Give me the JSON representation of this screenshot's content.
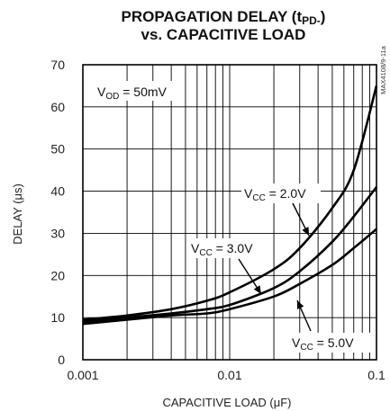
{
  "chart_data": {
    "type": "line",
    "title_line1": "PROPAGATION DELAY (t",
    "title_sub": "PD-",
    "title_line1_end": ")",
    "title_line2": "vs. CAPACITIVE LOAD",
    "xlabel": "CAPACITIVE LOAD (μF)",
    "ylabel": "DELAY (μs)",
    "x_scale": "log",
    "xlim": [
      0.001,
      0.1
    ],
    "ylim": [
      0,
      70
    ],
    "grid": true,
    "x_ticks": [
      "0.001",
      "0.01",
      "0.1"
    ],
    "y_ticks": [
      "0",
      "10",
      "20",
      "30",
      "40",
      "50",
      "60",
      "70"
    ],
    "condition_label": {
      "main": "V",
      "sub": "OD",
      "rest": " = 50mV"
    },
    "side_code": "MAX4108/9-11a",
    "series": [
      {
        "label_main": "V",
        "label_sub": "CC",
        "label_rest": " = 2.0V",
        "x": [
          0.001,
          0.002,
          0.004,
          0.007,
          0.01,
          0.02,
          0.03,
          0.05,
          0.07,
          0.1
        ],
        "y": [
          9.5,
          10.5,
          12.0,
          14.0,
          16.0,
          21.5,
          26.5,
          36.0,
          45.0,
          65.0
        ]
      },
      {
        "label_main": "V",
        "label_sub": "CC",
        "label_rest": " = 3.0V",
        "x": [
          0.001,
          0.002,
          0.004,
          0.007,
          0.01,
          0.02,
          0.03,
          0.05,
          0.07,
          0.1
        ],
        "y": [
          9.0,
          10.0,
          11.0,
          12.0,
          13.0,
          17.0,
          21.0,
          28.0,
          34.0,
          41.0
        ]
      },
      {
        "label_main": "V",
        "label_sub": "CC",
        "label_rest": " = 5.0V",
        "x": [
          0.001,
          0.002,
          0.004,
          0.007,
          0.01,
          0.02,
          0.03,
          0.05,
          0.07,
          0.1
        ],
        "y": [
          8.5,
          9.5,
          10.5,
          11.0,
          12.0,
          15.0,
          18.0,
          22.5,
          26.5,
          31.0
        ]
      }
    ]
  }
}
